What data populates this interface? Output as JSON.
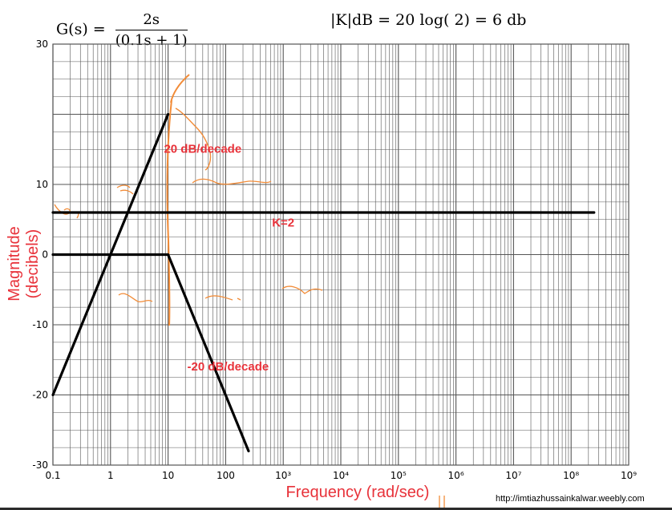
{
  "formula": {
    "lhs": "G(s) =",
    "numerator": "2s",
    "denominator": "(0.1s + 1)",
    "gain_expression": "|K|dB = 20 log( 2) = 6 db"
  },
  "source_url": "http://imtiazhussainkalwar.weebly.com",
  "colors": {
    "grid": "#555555",
    "asymptote": "#000000",
    "annotation": "#e8323a",
    "sketch": "#f28c38"
  },
  "chart_data": {
    "type": "line",
    "xlabel": "Frequency (rad/sec)",
    "ylabel": "Magnitude (decibels)",
    "x_scale": "log",
    "xlim": [
      0.1,
      1000000000
    ],
    "ylim": [
      -30,
      30
    ],
    "grid": true,
    "x_ticks": [
      "0.1",
      "1",
      "10",
      "100",
      "10³",
      "10⁴",
      "10⁵",
      "10⁶",
      "10⁷",
      "10⁸",
      "10⁹"
    ],
    "y_ticks": [
      "30",
      "10",
      "0",
      "-10",
      "-20",
      "-30"
    ],
    "series": [
      {
        "x": [
          0.1,
          10
        ],
        "y": [
          -20,
          20
        ]
      },
      {
        "x": [
          0.1,
          250000000
        ],
        "y": [
          6,
          6
        ]
      },
      {
        "x": [
          0.1,
          10,
          250
        ],
        "y": [
          0,
          0,
          -28
        ]
      }
    ],
    "annotations": [
      {
        "text": "20 dB/decade",
        "x": 40,
        "y": 14.5
      },
      {
        "text": "K=2",
        "x": 1000,
        "y": 4
      },
      {
        "text": "-20 dB/decade",
        "x": 110,
        "y": -16.5
      }
    ]
  }
}
